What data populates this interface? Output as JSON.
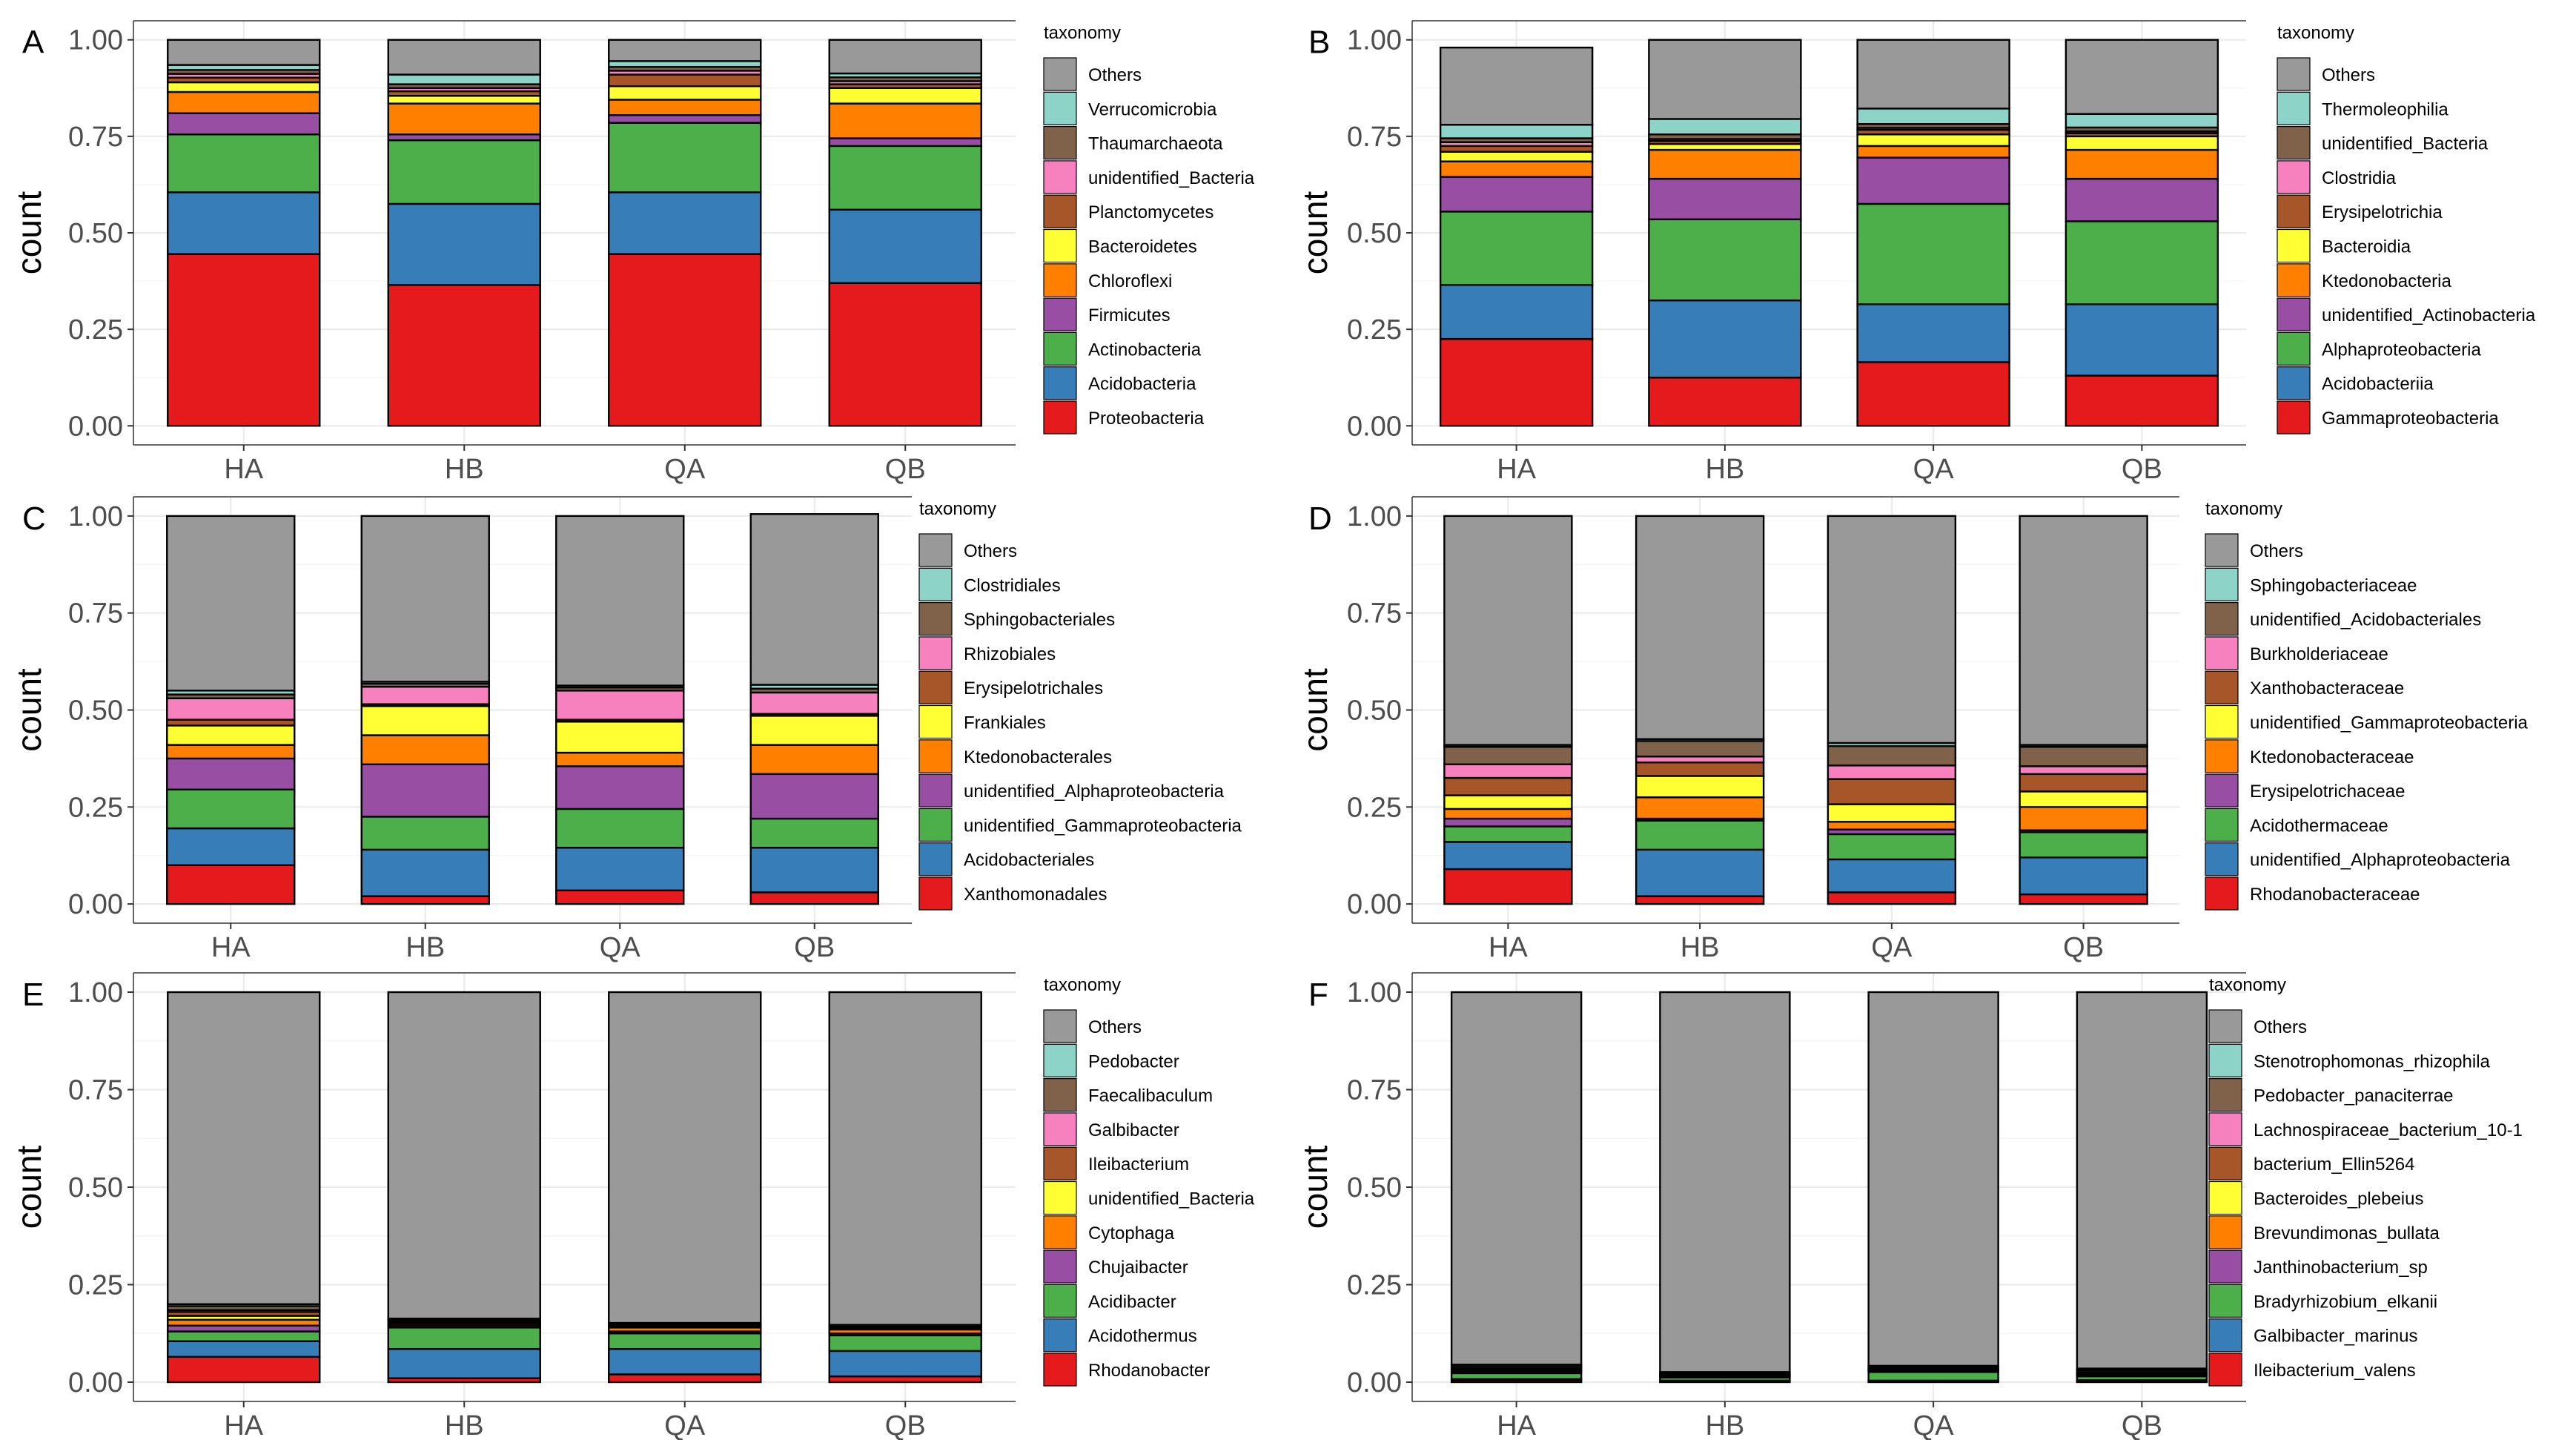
{
  "colors": {
    "Others": "#999999",
    "teal": "#8DD3C7",
    "brown": "#80614A",
    "pink": "#F781BF",
    "rust": "#A65628",
    "yellow": "#FFFF33",
    "orange": "#FF7F00",
    "purple": "#984EA3",
    "green": "#4DAF4A",
    "blue": "#377EB8",
    "red": "#E41A1C"
  },
  "chart_data": [
    {
      "type": "bar",
      "stacked": true,
      "panel_label": "A",
      "ylabel": "count",
      "legend_title": "taxonomy",
      "yticks": [
        "0.00",
        "0.25",
        "0.50",
        "0.75",
        "1.00"
      ],
      "ylim": [
        0,
        1
      ],
      "categories": [
        "HA",
        "HB",
        "QA",
        "QB"
      ],
      "series": [
        {
          "name": "Proteobacteria",
          "color_key": "red",
          "values": [
            0.445,
            0.365,
            0.445,
            0.37
          ]
        },
        {
          "name": "Acidobacteria",
          "color_key": "blue",
          "values": [
            0.16,
            0.21,
            0.16,
            0.19
          ]
        },
        {
          "name": "Actinobacteria",
          "color_key": "green",
          "values": [
            0.15,
            0.165,
            0.18,
            0.165
          ]
        },
        {
          "name": "Firmicutes",
          "color_key": "purple",
          "values": [
            0.055,
            0.015,
            0.02,
            0.02
          ]
        },
        {
          "name": "Chloroflexi",
          "color_key": "orange",
          "values": [
            0.055,
            0.08,
            0.04,
            0.09
          ]
        },
        {
          "name": "Bacteroidetes",
          "color_key": "yellow",
          "values": [
            0.025,
            0.02,
            0.035,
            0.04
          ]
        },
        {
          "name": "Planctomycetes",
          "color_key": "rust",
          "values": [
            0.012,
            0.012,
            0.03,
            0.01
          ]
        },
        {
          "name": "unidentified_Bacteria",
          "color_key": "pink",
          "values": [
            0.01,
            0.008,
            0.01,
            0.008
          ]
        },
        {
          "name": "Thaumarchaeota",
          "color_key": "brown",
          "values": [
            0.01,
            0.01,
            0.01,
            0.01
          ]
        },
        {
          "name": "Verrucomicrobia",
          "color_key": "teal",
          "values": [
            0.013,
            0.025,
            0.015,
            0.01
          ]
        },
        {
          "name": "Others",
          "color_key": "Others",
          "values": [
            0.065,
            0.09,
            0.055,
            0.087
          ]
        }
      ]
    },
    {
      "type": "bar",
      "stacked": true,
      "panel_label": "B",
      "ylabel": "count",
      "legend_title": "taxonomy",
      "yticks": [
        "0.00",
        "0.25",
        "0.50",
        "0.75",
        "1.00"
      ],
      "ylim": [
        0,
        1
      ],
      "categories": [
        "HA",
        "HB",
        "QA",
        "QB"
      ],
      "series": [
        {
          "name": "Gammaproteobacteria",
          "color_key": "red",
          "values": [
            0.225,
            0.125,
            0.165,
            0.13
          ]
        },
        {
          "name": "Acidobacteriia",
          "color_key": "blue",
          "values": [
            0.14,
            0.2,
            0.15,
            0.185
          ]
        },
        {
          "name": "Alphaproteobacteria",
          "color_key": "green",
          "values": [
            0.19,
            0.21,
            0.26,
            0.215
          ]
        },
        {
          "name": "unidentified_Actinobacteria",
          "color_key": "purple",
          "values": [
            0.09,
            0.105,
            0.12,
            0.11
          ]
        },
        {
          "name": "Ktedonobacteria",
          "color_key": "orange",
          "values": [
            0.04,
            0.075,
            0.03,
            0.075
          ]
        },
        {
          "name": "Bacteroidia",
          "color_key": "yellow",
          "values": [
            0.025,
            0.015,
            0.03,
            0.035
          ]
        },
        {
          "name": "Erysipelotrichia",
          "color_key": "rust",
          "values": [
            0.015,
            0.008,
            0.012,
            0.008
          ]
        },
        {
          "name": "Clostridia",
          "color_key": "pink",
          "values": [
            0.01,
            0.005,
            0.005,
            0.005
          ]
        },
        {
          "name": "unidentified_Bacteria",
          "color_key": "brown",
          "values": [
            0.01,
            0.012,
            0.01,
            0.01
          ]
        },
        {
          "name": "Thermoleophilia",
          "color_key": "teal",
          "values": [
            0.035,
            0.04,
            0.04,
            0.035
          ]
        },
        {
          "name": "Others",
          "color_key": "Others",
          "values": [
            0.2,
            0.205,
            0.178,
            0.192
          ]
        }
      ]
    },
    {
      "type": "bar",
      "stacked": true,
      "panel_label": "C",
      "ylabel": "count",
      "legend_title": "taxonomy",
      "yticks": [
        "0.00",
        "0.25",
        "0.50",
        "0.75",
        "1.00"
      ],
      "ylim": [
        0,
        1
      ],
      "categories": [
        "HA",
        "HB",
        "QA",
        "QB"
      ],
      "series": [
        {
          "name": "Xanthomonadales",
          "color_key": "red",
          "values": [
            0.1,
            0.02,
            0.035,
            0.03
          ]
        },
        {
          "name": "Acidobacteriales",
          "color_key": "blue",
          "values": [
            0.095,
            0.12,
            0.11,
            0.115
          ]
        },
        {
          "name": "unidentified_Gammaproteobacteria",
          "color_key": "green",
          "values": [
            0.1,
            0.085,
            0.1,
            0.075
          ]
        },
        {
          "name": "unidentified_Alphaproteobacteria",
          "color_key": "purple",
          "values": [
            0.08,
            0.135,
            0.11,
            0.115
          ]
        },
        {
          "name": "Ktedonobacterales",
          "color_key": "orange",
          "values": [
            0.035,
            0.075,
            0.035,
            0.075
          ]
        },
        {
          "name": "Frankiales",
          "color_key": "yellow",
          "values": [
            0.05,
            0.075,
            0.08,
            0.075
          ]
        },
        {
          "name": "Erysipelotrichales",
          "color_key": "rust",
          "values": [
            0.015,
            0.005,
            0.005,
            0.005
          ]
        },
        {
          "name": "Rhizobiales",
          "color_key": "pink",
          "values": [
            0.055,
            0.045,
            0.075,
            0.055
          ]
        },
        {
          "name": "Sphingobacteriales",
          "color_key": "brown",
          "values": [
            0.01,
            0.008,
            0.008,
            0.01
          ]
        },
        {
          "name": "Clostridiales",
          "color_key": "teal",
          "values": [
            0.01,
            0.005,
            0.005,
            0.01
          ]
        },
        {
          "name": "Others",
          "color_key": "Others",
          "values": [
            0.45,
            0.427,
            0.437,
            0.44
          ]
        }
      ]
    },
    {
      "type": "bar",
      "stacked": true,
      "panel_label": "D",
      "ylabel": "count",
      "legend_title": "taxonomy",
      "yticks": [
        "0.00",
        "0.25",
        "0.50",
        "0.75",
        "1.00"
      ],
      "ylim": [
        0,
        1
      ],
      "categories": [
        "HA",
        "HB",
        "QA",
        "QB"
      ],
      "series": [
        {
          "name": "Rhodanobacteraceae",
          "color_key": "red",
          "values": [
            0.09,
            0.02,
            0.03,
            0.025
          ]
        },
        {
          "name": "unidentified_Alphaproteobacteria",
          "color_key": "blue",
          "values": [
            0.07,
            0.12,
            0.085,
            0.095
          ]
        },
        {
          "name": "Acidothermaceae",
          "color_key": "green",
          "values": [
            0.04,
            0.075,
            0.065,
            0.065
          ]
        },
        {
          "name": "Erysipelotrichaceae",
          "color_key": "purple",
          "values": [
            0.02,
            0.005,
            0.012,
            0.005
          ]
        },
        {
          "name": "Ktedonobacteraceae",
          "color_key": "orange",
          "values": [
            0.025,
            0.055,
            0.02,
            0.06
          ]
        },
        {
          "name": "unidentified_Gammaproteobacteria",
          "color_key": "yellow",
          "values": [
            0.035,
            0.055,
            0.045,
            0.04
          ]
        },
        {
          "name": "Xanthobacteraceae",
          "color_key": "rust",
          "values": [
            0.045,
            0.035,
            0.065,
            0.045
          ]
        },
        {
          "name": "Burkholderiaceae",
          "color_key": "pink",
          "values": [
            0.035,
            0.015,
            0.035,
            0.02
          ]
        },
        {
          "name": "unidentified_Acidobacteriales",
          "color_key": "brown",
          "values": [
            0.045,
            0.04,
            0.05,
            0.05
          ]
        },
        {
          "name": "Sphingobacteriaceae",
          "color_key": "teal",
          "values": [
            0.005,
            0.005,
            0.008,
            0.005
          ]
        },
        {
          "name": "Others",
          "color_key": "Others",
          "values": [
            0.59,
            0.575,
            0.585,
            0.59
          ]
        }
      ]
    },
    {
      "type": "bar",
      "stacked": true,
      "panel_label": "E",
      "ylabel": "count",
      "legend_title": "taxonomy",
      "yticks": [
        "0.00",
        "0.25",
        "0.50",
        "0.75",
        "1.00"
      ],
      "ylim": [
        0,
        1
      ],
      "categories": [
        "HA",
        "HB",
        "QA",
        "QB"
      ],
      "series": [
        {
          "name": "Rhodanobacter",
          "color_key": "red",
          "values": [
            0.065,
            0.01,
            0.02,
            0.015
          ]
        },
        {
          "name": "Acidothermus",
          "color_key": "blue",
          "values": [
            0.04,
            0.075,
            0.065,
            0.065
          ]
        },
        {
          "name": "Acidibacter",
          "color_key": "green",
          "values": [
            0.025,
            0.055,
            0.04,
            0.04
          ]
        },
        {
          "name": "Chujaibacter",
          "color_key": "purple",
          "values": [
            0.015,
            0.005,
            0.005,
            0.005
          ]
        },
        {
          "name": "Cytophaga",
          "color_key": "orange",
          "values": [
            0.015,
            0.005,
            0.01,
            0.01
          ]
        },
        {
          "name": "unidentified_Bacteria",
          "color_key": "yellow",
          "values": [
            0.01,
            0.003,
            0.003,
            0.003
          ]
        },
        {
          "name": "Ileibacterium",
          "color_key": "rust",
          "values": [
            0.01,
            0.003,
            0.003,
            0.003
          ]
        },
        {
          "name": "Galbibacter",
          "color_key": "pink",
          "values": [
            0.005,
            0.002,
            0.002,
            0.002
          ]
        },
        {
          "name": "Faecalibaculum",
          "color_key": "brown",
          "values": [
            0.01,
            0.003,
            0.002,
            0.002
          ]
        },
        {
          "name": "Pedobacter",
          "color_key": "teal",
          "values": [
            0.005,
            0.002,
            0.002,
            0.002
          ]
        },
        {
          "name": "Others",
          "color_key": "Others",
          "values": [
            0.8,
            0.837,
            0.848,
            0.853
          ]
        }
      ]
    },
    {
      "type": "bar",
      "stacked": true,
      "panel_label": "F",
      "ylabel": "count",
      "legend_title": "taxonomy",
      "yticks": [
        "0.00",
        "0.25",
        "0.50",
        "0.75",
        "1.00"
      ],
      "ylim": [
        0,
        1
      ],
      "categories": [
        "HA",
        "HB",
        "QA",
        "QB"
      ],
      "series": [
        {
          "name": "Ileibacterium_valens",
          "color_key": "red",
          "values": [
            0.005,
            0.002,
            0.002,
            0.002
          ]
        },
        {
          "name": "Galbibacter_marinus",
          "color_key": "blue",
          "values": [
            0.003,
            0.002,
            0.002,
            0.003
          ]
        },
        {
          "name": "Bradyrhizobium_elkanii",
          "color_key": "green",
          "values": [
            0.015,
            0.008,
            0.022,
            0.01
          ]
        },
        {
          "name": "Janthinobacterium_sp",
          "color_key": "purple",
          "values": [
            0.003,
            0.002,
            0.002,
            0.002
          ]
        },
        {
          "name": "Brevundimonas_bullata",
          "color_key": "orange",
          "values": [
            0.002,
            0.002,
            0.002,
            0.002
          ]
        },
        {
          "name": "Bacteroides_plebeius",
          "color_key": "yellow",
          "values": [
            0.003,
            0.002,
            0.002,
            0.002
          ]
        },
        {
          "name": "bacterium_Ellin5264",
          "color_key": "rust",
          "values": [
            0.003,
            0.002,
            0.002,
            0.003
          ]
        },
        {
          "name": "Lachnospiraceae_bacterium_10-1",
          "color_key": "pink",
          "values": [
            0.003,
            0.002,
            0.002,
            0.002
          ]
        },
        {
          "name": "Pedobacter_panaciterrae",
          "color_key": "brown",
          "values": [
            0.005,
            0.002,
            0.003,
            0.005
          ]
        },
        {
          "name": "Stenotrophomonas_rhizophila",
          "color_key": "teal",
          "values": [
            0.003,
            0.002,
            0.003,
            0.004
          ]
        },
        {
          "name": "Others",
          "color_key": "Others",
          "values": [
            0.955,
            0.974,
            0.958,
            0.965
          ]
        }
      ]
    }
  ]
}
